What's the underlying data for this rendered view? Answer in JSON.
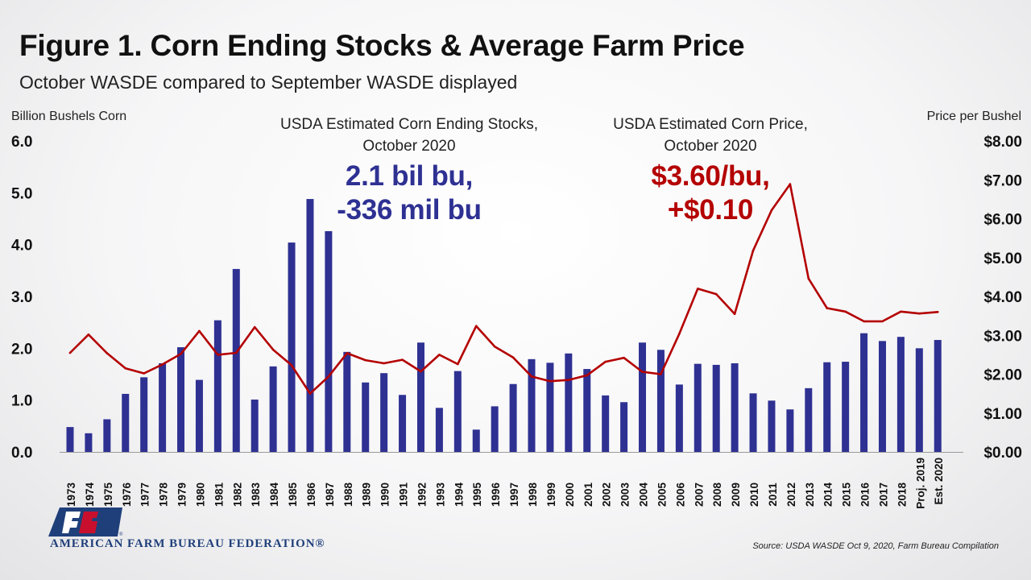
{
  "header": {
    "title": "Figure 1. Corn Ending Stocks & Average Farm Price",
    "subtitle": "October WASDE compared to September WASDE displayed"
  },
  "annotations": {
    "stocks": {
      "line1": "USDA Estimated Corn Ending Stocks,",
      "line2": "October 2020",
      "value1": "2.1 bil bu,",
      "value2": "-336 mil bu"
    },
    "price": {
      "line1": "USDA Estimated Corn Price,",
      "line2": "October 2020",
      "value1": "$3.60/bu,",
      "value2": "+$0.10"
    }
  },
  "footer": {
    "org_name": "AMERICAN FARM BUREAU FEDERATION®",
    "logo_letters": "FB",
    "source": "Source: USDA WASDE Oct 9, 2020, Farm Bureau Compilation"
  },
  "colors": {
    "bars": "#2e3192",
    "line": "#b40000"
  },
  "chart_data": {
    "type": "bar",
    "title": "Figure 1. Corn Ending Stocks & Average Farm Price",
    "subtitle": "October WASDE compared to September WASDE displayed",
    "ylabel": "Billion Bushels Corn",
    "y2label": "Price per Bushel",
    "ylim": [
      0,
      6
    ],
    "y2lim": [
      0,
      8
    ],
    "yticks": [
      "0.0",
      "1.0",
      "2.0",
      "3.0",
      "4.0",
      "5.0",
      "6.0"
    ],
    "y2ticks": [
      "$0.00",
      "$1.00",
      "$2.00",
      "$3.00",
      "$4.00",
      "$5.00",
      "$6.00",
      "$7.00",
      "$8.00"
    ],
    "grid": false,
    "legend": "none",
    "categories": [
      "1973",
      "1974",
      "1975",
      "1976",
      "1977",
      "1978",
      "1979",
      "1980",
      "1981",
      "1982",
      "1983",
      "1984",
      "1985",
      "1986",
      "1987",
      "1988",
      "1989",
      "1990",
      "1991",
      "1992",
      "1993",
      "1994",
      "1995",
      "1996",
      "1997",
      "1998",
      "1999",
      "2000",
      "2001",
      "2002",
      "2003",
      "2004",
      "2005",
      "2006",
      "2007",
      "2008",
      "2009",
      "2010",
      "2011",
      "2012",
      "2013",
      "2014",
      "2015",
      "2016",
      "2017",
      "2018",
      "Proj. 2019",
      "Est. 2020"
    ],
    "series": [
      {
        "type": "bar",
        "axis": "left",
        "values": [
          0.48,
          0.36,
          0.63,
          1.12,
          1.44,
          1.71,
          2.02,
          1.39,
          2.54,
          3.53,
          1.01,
          1.65,
          4.04,
          4.88,
          4.26,
          1.93,
          1.34,
          1.52,
          1.1,
          2.11,
          0.85,
          1.56,
          0.43,
          0.88,
          1.31,
          1.79,
          1.72,
          1.9,
          1.6,
          1.09,
          0.96,
          2.11,
          1.97,
          1.3,
          1.7,
          1.68,
          1.71,
          1.13,
          0.99,
          0.82,
          1.23,
          1.73,
          1.74,
          2.29,
          2.14,
          2.22,
          2.0,
          2.16
        ]
      },
      {
        "type": "line",
        "axis": "right",
        "values": [
          2.55,
          3.02,
          2.54,
          2.15,
          2.02,
          2.25,
          2.52,
          3.11,
          2.5,
          2.55,
          3.21,
          2.63,
          2.23,
          1.5,
          1.94,
          2.54,
          2.36,
          2.28,
          2.37,
          2.07,
          2.5,
          2.26,
          3.24,
          2.71,
          2.43,
          1.94,
          1.82,
          1.85,
          1.97,
          2.32,
          2.42,
          2.06,
          2.0,
          3.04,
          4.2,
          4.06,
          3.55,
          5.18,
          6.22,
          6.89,
          4.46,
          3.7,
          3.61,
          3.36,
          3.36,
          3.61,
          3.56,
          3.6
        ]
      }
    ]
  }
}
